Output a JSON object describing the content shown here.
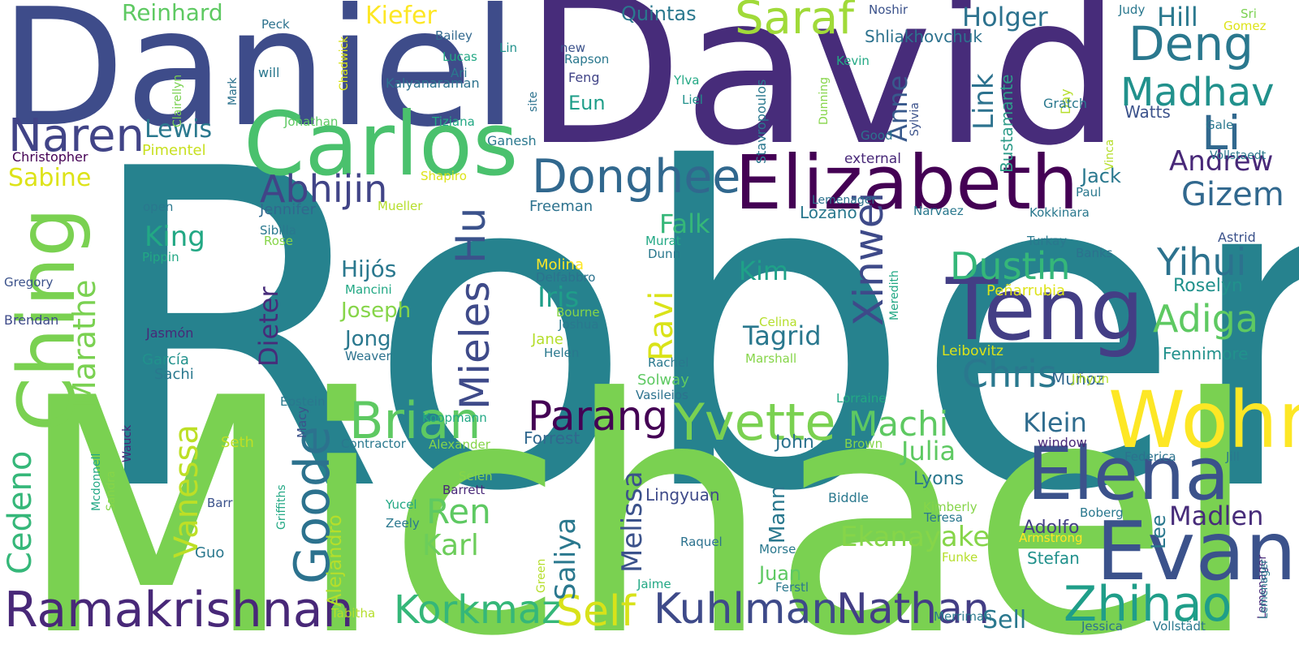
{
  "words": [
    {
      "text": "Robert",
      "color": "#26828e"
    },
    {
      "text": "Michael",
      "color": "#7ad151"
    },
    {
      "text": "David",
      "color": "#472c7a"
    },
    {
      "text": "Daniel",
      "color": "#3e4c8a"
    },
    {
      "text": "Carlos",
      "color": "#4ac16d"
    },
    {
      "text": "Ching",
      "color": "#7ad151"
    },
    {
      "text": "Elizabeth",
      "color": "#440154"
    },
    {
      "text": "Teng",
      "color": "#433e85"
    },
    {
      "text": "Wohn",
      "color": "#fde725"
    },
    {
      "text": "Evan",
      "color": "#3b528b"
    },
    {
      "text": "Elena",
      "color": "#3b528b"
    },
    {
      "text": "Zhihao",
      "color": "#1f9e89"
    },
    {
      "text": "Ramakrishnan",
      "color": "#482878"
    },
    {
      "text": "Brian",
      "color": "#5ec962"
    },
    {
      "text": "Yvette",
      "color": "#7ad151"
    },
    {
      "text": "Saraf",
      "color": "#a0da39"
    },
    {
      "text": "Donghee",
      "color": "#31688e"
    },
    {
      "text": "Naren",
      "color": "#414487"
    },
    {
      "text": "Goode",
      "color": "#2c728e"
    },
    {
      "text": "Mieles",
      "color": "#3e4a89"
    },
    {
      "text": "Hu",
      "color": "#3b528b"
    },
    {
      "text": "Kuhlman",
      "color": "#3e4a89"
    },
    {
      "text": "Nathan",
      "color": "#433e85"
    },
    {
      "text": "Korkmaz",
      "color": "#35b779"
    },
    {
      "text": "Self",
      "color": "#d8e219"
    },
    {
      "text": "Deng",
      "color": "#2a788e"
    },
    {
      "text": "Li",
      "color": "#31688e"
    },
    {
      "text": "Madhav",
      "color": "#21918c"
    },
    {
      "text": "Xinwei",
      "color": "#3e4a89"
    },
    {
      "text": "Parang",
      "color": "#440154"
    },
    {
      "text": "Machi",
      "color": "#5ec962"
    },
    {
      "text": "Dustin",
      "color": "#35b779"
    },
    {
      "text": "Chris",
      "color": "#2a788e"
    },
    {
      "text": "Adiga",
      "color": "#5ec962"
    },
    {
      "text": "Yihui",
      "color": "#2c728e"
    },
    {
      "text": "Gizem",
      "color": "#31688e"
    },
    {
      "text": "Andrew",
      "color": "#482878"
    },
    {
      "text": "Abhijin",
      "color": "#414487"
    },
    {
      "text": "Marathe",
      "color": "#7ad151"
    },
    {
      "text": "Cedeno",
      "color": "#35b779"
    },
    {
      "text": "Vanessa",
      "color": "#bddf26"
    },
    {
      "text": "Ren",
      "color": "#5ec962"
    },
    {
      "text": "Karl",
      "color": "#6ccd5a"
    },
    {
      "text": "Saliya",
      "color": "#2a788e"
    },
    {
      "text": "Melissa",
      "color": "#3b528b"
    },
    {
      "text": "Julia",
      "color": "#5ec962"
    },
    {
      "text": "Klein",
      "color": "#2f6c8e"
    },
    {
      "text": "Ekanayake",
      "color": "#86d549"
    },
    {
      "text": "Madlen",
      "color": "#472c7a"
    },
    {
      "text": "Sell",
      "color": "#2a788e"
    },
    {
      "text": "Link",
      "color": "#2c728e"
    },
    {
      "text": "Anne",
      "color": "#38598c"
    },
    {
      "text": "Holger",
      "color": "#2c728e"
    },
    {
      "text": "Hill",
      "color": "#2a788e"
    },
    {
      "text": "Ravi",
      "color": "#dae319"
    },
    {
      "text": "Tagrid",
      "color": "#2a788e"
    },
    {
      "text": "Kim",
      "color": "#1fa188"
    },
    {
      "text": "Iris",
      "color": "#1f9e89"
    },
    {
      "text": "Hijós",
      "color": "#2a788e"
    },
    {
      "text": "Joseph",
      "color": "#86d549"
    },
    {
      "text": "Jong",
      "color": "#2a788e"
    },
    {
      "text": "Dieter",
      "color": "#472c7a"
    },
    {
      "text": "Falk",
      "color": "#35b779"
    },
    {
      "text": "King",
      "color": "#22a884"
    },
    {
      "text": "Lewis",
      "color": "#2a788e"
    },
    {
      "text": "Sabine",
      "color": "#dde318"
    },
    {
      "text": "Kiefer",
      "color": "#fde725"
    },
    {
      "text": "Reinhard",
      "color": "#5ec962"
    },
    {
      "text": "Quintas",
      "color": "#2a788e"
    },
    {
      "text": "Shliakhovchuk",
      "color": "#2c728e"
    },
    {
      "text": "Bustamante",
      "color": "#2f9c8a"
    },
    {
      "text": "Jack",
      "color": "#2a788e"
    },
    {
      "text": "Roselyn",
      "color": "#21918c"
    },
    {
      "text": "Fennimore",
      "color": "#21918c"
    },
    {
      "text": "Watts",
      "color": "#3b528b"
    },
    {
      "text": "Eun",
      "color": "#1f9e89"
    },
    {
      "text": "Lozano",
      "color": "#2a788e"
    },
    {
      "text": "Jennifer",
      "color": "#31688e"
    },
    {
      "text": "Lyons",
      "color": "#2a788e"
    },
    {
      "text": "Lingyuan",
      "color": "#3e4a89"
    },
    {
      "text": "Mann",
      "color": "#2a788e"
    },
    {
      "text": "John",
      "color": "#2c728e"
    },
    {
      "text": "Juan",
      "color": "#5ec962"
    },
    {
      "text": "Alejandro",
      "color": "#b5de2b"
    },
    {
      "text": "Lee",
      "color": "#2a788e"
    },
    {
      "text": "Adolfo",
      "color": "#433e85"
    },
    {
      "text": "Stefan",
      "color": "#21918c"
    },
    {
      "text": "Muñoz",
      "color": "#31688e"
    },
    {
      "text": "Forrest",
      "color": "#31688e"
    },
    {
      "text": "Guo",
      "color": "#2a788e"
    },
    {
      "text": "Seth",
      "color": "#bddf26"
    },
    {
      "text": "Pimentel",
      "color": "#c8e020"
    },
    {
      "text": "Sachi",
      "color": "#2a788e"
    },
    {
      "text": "García",
      "color": "#21918c"
    },
    {
      "text": "Christopher",
      "color": "#440154"
    },
    {
      "text": "Gregory",
      "color": "#3b528b"
    },
    {
      "text": "Brendan",
      "color": "#3e4a89"
    },
    {
      "text": "Jasmón",
      "color": "#482878"
    },
    {
      "text": "Peck",
      "color": "#2c728e"
    },
    {
      "text": "Clairellyn",
      "color": "#7ad151"
    },
    {
      "text": "Mark",
      "color": "#2c728e"
    },
    {
      "text": "will",
      "color": "#2a788e"
    },
    {
      "text": "Chadwick",
      "color": "#d8e219"
    },
    {
      "text": "Jonathan",
      "color": "#5ec962"
    },
    {
      "text": "Tiziana",
      "color": "#22a884"
    },
    {
      "text": "Ganesh",
      "color": "#2a788e"
    },
    {
      "text": "Bailey",
      "color": "#31688e"
    },
    {
      "text": "Lucas",
      "color": "#22a884"
    },
    {
      "text": "Ari",
      "color": "#2a788e"
    },
    {
      "text": "Kalyanaraman",
      "color": "#2c728e"
    },
    {
      "text": "Lin",
      "color": "#21918c"
    },
    {
      "text": "new",
      "color": "#3b528b"
    },
    {
      "text": "Rapson",
      "color": "#2a788e"
    },
    {
      "text": "Feng",
      "color": "#414487"
    },
    {
      "text": "site",
      "color": "#2c728e"
    },
    {
      "text": "Liel",
      "color": "#21918c"
    },
    {
      "text": "Ylva",
      "color": "#22a884"
    },
    {
      "text": "Stavropoulos",
      "color": "#2a788e"
    },
    {
      "text": "Kevin",
      "color": "#22a884"
    },
    {
      "text": "Dunning",
      "color": "#86d549"
    },
    {
      "text": "Day",
      "color": "#b5de2b"
    },
    {
      "text": "Gratch",
      "color": "#2a788e"
    },
    {
      "text": "Good",
      "color": "#2c728e"
    },
    {
      "text": "Sylvia",
      "color": "#3b528b"
    },
    {
      "text": "Noshir",
      "color": "#3b528b"
    },
    {
      "text": "Judy",
      "color": "#2a788e"
    },
    {
      "text": "Sri",
      "color": "#7ad151"
    },
    {
      "text": "Gomez",
      "color": "#dde318"
    },
    {
      "text": "Vinca",
      "color": "#b5de2b"
    },
    {
      "text": "Gale",
      "color": "#2a788e"
    },
    {
      "text": "Vollstaedt",
      "color": "#2a788e"
    },
    {
      "text": "Paul",
      "color": "#2a788e"
    },
    {
      "text": "external",
      "color": "#482878"
    },
    {
      "text": "Lemenager",
      "color": "#2c728e"
    },
    {
      "text": "Narvaez",
      "color": "#2a788e"
    },
    {
      "text": "Kokkinara",
      "color": "#2a788e"
    },
    {
      "text": "Meredith",
      "color": "#22a884"
    },
    {
      "text": "Turkay",
      "color": "#2a788e"
    },
    {
      "text": "Banks",
      "color": "#2c728e"
    },
    {
      "text": "Astrid",
      "color": "#3b528b"
    },
    {
      "text": "Shapiro",
      "color": "#dde318"
    },
    {
      "text": "open",
      "color": "#2a788e"
    },
    {
      "text": "Mueller",
      "color": "#b5de2b"
    },
    {
      "text": "Freeman",
      "color": "#2c728e"
    },
    {
      "text": "Sibilla",
      "color": "#2a788e"
    },
    {
      "text": "Rose",
      "color": "#86d549"
    },
    {
      "text": "Pippin",
      "color": "#22a884"
    },
    {
      "text": "Murat",
      "color": "#22a884"
    },
    {
      "text": "Dunn",
      "color": "#2a788e"
    },
    {
      "text": "Molina",
      "color": "#fde725"
    },
    {
      "text": "Delfabbro",
      "color": "#2c728e"
    },
    {
      "text": "Mancini",
      "color": "#22a884"
    },
    {
      "text": "Bourne",
      "color": "#86d549"
    },
    {
      "text": "Joshua",
      "color": "#2a788e"
    },
    {
      "text": "Jane",
      "color": "#b5de2b"
    },
    {
      "text": "Helen",
      "color": "#2a788e"
    },
    {
      "text": "Weaver",
      "color": "#2c728e"
    },
    {
      "text": "Peñarrubia",
      "color": "#dde318"
    },
    {
      "text": "Celina",
      "color": "#b5de2b"
    },
    {
      "text": "Marshall",
      "color": "#86d549"
    },
    {
      "text": "Leibovitz",
      "color": "#dde318"
    },
    {
      "text": "Rachel",
      "color": "#2a788e"
    },
    {
      "text": "Solway",
      "color": "#5ec962"
    },
    {
      "text": "Vasileios",
      "color": "#2c728e"
    },
    {
      "text": "Jihyun",
      "color": "#b5de2b"
    },
    {
      "text": "Lorraine",
      "color": "#22a884"
    },
    {
      "text": "Macy",
      "color": "#3b528b"
    },
    {
      "text": "Epstein",
      "color": "#2a788e"
    },
    {
      "text": "Koopmann",
      "color": "#22a884"
    },
    {
      "text": "Contractor",
      "color": "#2a788e"
    },
    {
      "text": "Alexander",
      "color": "#86d549"
    },
    {
      "text": "Brown",
      "color": "#86d549"
    },
    {
      "text": "window",
      "color": "#482878"
    },
    {
      "text": "Federica",
      "color": "#2c728e"
    },
    {
      "text": "Jill",
      "color": "#2a788e"
    },
    {
      "text": "Mcdonnell",
      "color": "#22a884"
    },
    {
      "text": "Wauck",
      "color": "#482878"
    },
    {
      "text": "Sandra",
      "color": "#86d549"
    },
    {
      "text": "Griffiths",
      "color": "#22a884"
    },
    {
      "text": "Barr",
      "color": "#3b528b"
    },
    {
      "text": "Selen",
      "color": "#86d549"
    },
    {
      "text": "Barrett",
      "color": "#482878"
    },
    {
      "text": "Yucel",
      "color": "#22a884"
    },
    {
      "text": "Zeely",
      "color": "#2a788e"
    },
    {
      "text": "Biddle",
      "color": "#2a788e"
    },
    {
      "text": "Kimberly",
      "color": "#86d549"
    },
    {
      "text": "Teresa",
      "color": "#2a788e"
    },
    {
      "text": "Boberg",
      "color": "#2a788e"
    },
    {
      "text": "Armstrong",
      "color": "#fde725"
    },
    {
      "text": "Raquel",
      "color": "#2c728e"
    },
    {
      "text": "Morse",
      "color": "#2a788e"
    },
    {
      "text": "Green",
      "color": "#b5de2b"
    },
    {
      "text": "Funke",
      "color": "#b5de2b"
    },
    {
      "text": "Jaime",
      "color": "#22a884"
    },
    {
      "text": "Ferstl",
      "color": "#2a788e"
    },
    {
      "text": "Lemenager",
      "color": "#482878"
    },
    {
      "text": "Tabitha",
      "color": "#b5de2b"
    },
    {
      "text": "Merriman",
      "color": "#2a788e"
    },
    {
      "text": "Jessica",
      "color": "#2c728e"
    },
    {
      "text": "Vollstädt",
      "color": "#2a788e"
    },
    {
      "text": "Lemenager",
      "color": "#2a788e"
    }
  ]
}
